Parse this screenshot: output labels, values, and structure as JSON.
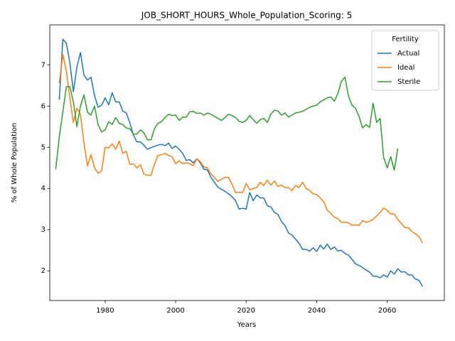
{
  "chart_data": {
    "type": "line",
    "title": "JOB_SHORT_HOURS_Whole_Population_Scoring: 5",
    "xlabel": "Years",
    "ylabel": "% of Whole Population",
    "legend_title": "Fertility",
    "legend": "upper right",
    "x": [
      1966,
      1967,
      1968,
      1969,
      1970,
      1971,
      1972,
      1973,
      1974,
      1975,
      1976,
      1977,
      1978,
      1979,
      1980,
      1981,
      1982,
      1983,
      1984,
      1985,
      1986,
      1987,
      1988,
      1989,
      1990,
      1991,
      1992,
      1993,
      1994,
      1995,
      1996,
      1997,
      1998,
      1999,
      2000,
      2001,
      2002,
      2003,
      2004,
      2005,
      2006,
      2007,
      2008,
      2009,
      2010,
      2011,
      2012,
      2013,
      2014,
      2015,
      2016,
      2017,
      2018,
      2019,
      2020,
      2021,
      2022,
      2023,
      2024,
      2025,
      2026,
      2027,
      2028,
      2029,
      2030,
      2031,
      2032,
      2033,
      2034,
      2035,
      2036,
      2037,
      2038,
      2039,
      2040,
      2041,
      2042,
      2043,
      2044,
      2045,
      2046,
      2047,
      2048,
      2049,
      2050,
      2051,
      2052,
      2053,
      2054,
      2055,
      2056,
      2057,
      2058,
      2059,
      2060,
      2061,
      2062,
      2063,
      2064,
      2065,
      2066,
      2067,
      2068,
      2069,
      2070
    ],
    "series": [
      {
        "name": "Actual",
        "color": "#1f77b4",
        "values": [
          null,
          6.15,
          7.62,
          7.53,
          7.05,
          6.35,
          6.95,
          7.3,
          6.75,
          6.63,
          6.7,
          6.25,
          5.97,
          6.02,
          6.2,
          6.03,
          6.32,
          6.1,
          6.1,
          5.88,
          5.83,
          5.6,
          5.3,
          5.13,
          5.13,
          5.05,
          4.95,
          4.99,
          5.02,
          5.05,
          5.07,
          5.04,
          5.1,
          4.97,
          5.03,
          4.95,
          4.85,
          4.68,
          4.7,
          4.62,
          4.72,
          4.62,
          4.47,
          4.45,
          4.27,
          4.15,
          4.03,
          3.98,
          3.93,
          3.87,
          3.8,
          3.7,
          3.5,
          3.52,
          3.5,
          3.9,
          3.7,
          3.84,
          3.77,
          3.77,
          3.58,
          3.55,
          3.42,
          3.37,
          3.2,
          3.1,
          2.92,
          2.87,
          2.77,
          2.67,
          2.52,
          2.52,
          2.48,
          2.56,
          2.47,
          2.62,
          2.53,
          2.65,
          2.52,
          2.58,
          2.48,
          2.5,
          2.42,
          2.38,
          2.28,
          2.17,
          2.13,
          2.08,
          2.02,
          1.97,
          1.87,
          1.87,
          1.83,
          1.9,
          1.85,
          2.0,
          1.92,
          2.05,
          1.97,
          1.98,
          1.9,
          1.9,
          1.8,
          1.77,
          1.62
        ]
      },
      {
        "name": "Ideal",
        "color": "#ff7f0e",
        "values": [
          null,
          6.55,
          7.25,
          6.85,
          6.2,
          5.6,
          5.95,
          5.8,
          5.1,
          4.55,
          4.82,
          4.5,
          4.37,
          4.42,
          5.0,
          4.98,
          5.08,
          4.95,
          5.15,
          4.85,
          4.9,
          4.58,
          4.6,
          4.5,
          4.57,
          4.35,
          4.32,
          4.32,
          4.6,
          4.8,
          4.82,
          4.85,
          4.8,
          4.77,
          4.6,
          4.67,
          4.6,
          4.62,
          4.6,
          4.55,
          4.72,
          4.65,
          4.52,
          4.5,
          4.35,
          4.27,
          4.17,
          4.22,
          4.27,
          4.27,
          4.1,
          3.9,
          3.9,
          3.9,
          4.12,
          3.97,
          4.0,
          4.02,
          4.15,
          4.07,
          4.2,
          4.08,
          4.18,
          4.05,
          4.08,
          4.02,
          4.02,
          3.95,
          4.07,
          4.02,
          4.15,
          4.0,
          3.95,
          3.87,
          3.85,
          3.77,
          3.68,
          3.47,
          3.4,
          3.3,
          3.27,
          3.18,
          3.18,
          3.17,
          3.1,
          3.12,
          3.1,
          3.22,
          3.18,
          3.2,
          3.25,
          3.33,
          3.42,
          3.52,
          3.47,
          3.38,
          3.38,
          3.25,
          3.15,
          3.05,
          3.05,
          2.95,
          2.9,
          2.83,
          2.68
        ]
      },
      {
        "name": "Sterile",
        "color": "#2ca02c",
        "values": [
          4.47,
          5.25,
          5.85,
          6.47,
          6.47,
          6.1,
          5.5,
          6.0,
          6.27,
          5.85,
          5.78,
          6.0,
          5.55,
          5.37,
          5.42,
          5.62,
          5.55,
          5.72,
          5.58,
          5.55,
          5.47,
          5.45,
          5.32,
          5.32,
          5.42,
          5.35,
          5.18,
          5.18,
          5.45,
          5.58,
          5.62,
          5.72,
          5.8,
          5.77,
          5.78,
          5.65,
          5.73,
          5.73,
          5.86,
          5.87,
          5.82,
          5.83,
          5.78,
          5.83,
          5.8,
          5.75,
          5.7,
          5.65,
          5.72,
          5.8,
          5.77,
          5.72,
          5.63,
          5.6,
          5.65,
          5.77,
          5.67,
          5.58,
          5.67,
          5.7,
          5.6,
          5.8,
          5.9,
          5.88,
          5.78,
          5.83,
          5.73,
          5.78,
          5.83,
          5.85,
          5.87,
          5.92,
          5.97,
          6.0,
          6.02,
          6.1,
          6.15,
          6.2,
          6.22,
          6.12,
          6.3,
          6.6,
          6.7,
          6.25,
          6.02,
          5.95,
          5.75,
          5.47,
          5.55,
          5.48,
          6.07,
          5.6,
          5.7,
          4.75,
          4.5,
          4.77,
          4.44,
          4.97,
          null,
          null,
          null,
          null,
          null,
          null,
          null
        ]
      }
    ],
    "xlim": [
      1964.3,
      2076.2
    ],
    "ylim": [
      1.28,
      7.97
    ],
    "xticks": [
      1980,
      2000,
      2020,
      2040,
      2060
    ],
    "yticks": [
      2,
      3,
      4,
      5,
      6,
      7
    ],
    "grid": false
  }
}
